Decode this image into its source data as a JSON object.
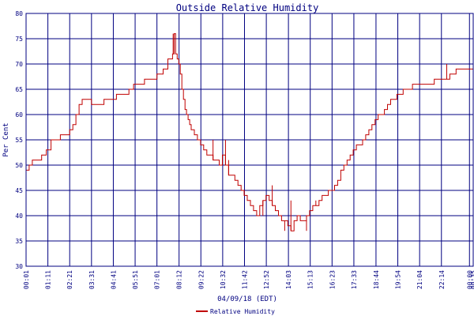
{
  "chart_data": {
    "type": "line",
    "title": "Outside Relative Humidity",
    "xlabel": "04/09/18 (EDT)",
    "ylabel": "Per Cent",
    "ylim": [
      30,
      80
    ],
    "yticks": [
      30,
      35,
      40,
      45,
      50,
      55,
      60,
      65,
      70,
      75,
      80
    ],
    "xlim": [
      0,
      1435
    ],
    "x_unit": "minutes since 00:01",
    "xtick_labels": [
      "00:01",
      "01:11",
      "02:21",
      "03:31",
      "04:41",
      "05:51",
      "07:01",
      "08:12",
      "09:22",
      "10:32",
      "11:42",
      "12:52",
      "14:03",
      "15:13",
      "16:23",
      "17:33",
      "18:44",
      "19:54",
      "21:04",
      "22:14",
      "00:00",
      "00:35"
    ],
    "xtick_minutes": [
      0,
      70,
      140,
      210,
      280,
      350,
      420,
      491,
      561,
      631,
      701,
      771,
      842,
      912,
      982,
      1052,
      1123,
      1193,
      1263,
      1333,
      1423,
      1435
    ],
    "grid": true,
    "legend_position": "bottom-center",
    "series": [
      {
        "name": "Relative Humidity",
        "color": "#c00000",
        "x": [
          0,
          10,
          20,
          35,
          50,
          65,
          80,
          95,
          110,
          125,
          140,
          150,
          160,
          170,
          180,
          190,
          200,
          210,
          230,
          250,
          270,
          290,
          310,
          330,
          345,
          360,
          380,
          400,
          420,
          440,
          455,
          465,
          470,
          475,
          480,
          485,
          490,
          495,
          500,
          505,
          510,
          515,
          520,
          525,
          530,
          540,
          550,
          560,
          570,
          580,
          590,
          600,
          610,
          620,
          630,
          640,
          650,
          660,
          670,
          680,
          690,
          700,
          710,
          720,
          730,
          740,
          750,
          760,
          770,
          780,
          790,
          800,
          810,
          820,
          830,
          840,
          850,
          860,
          870,
          880,
          890,
          900,
          910,
          920,
          930,
          940,
          950,
          960,
          970,
          980,
          990,
          1000,
          1010,
          1020,
          1030,
          1040,
          1050,
          1060,
          1070,
          1080,
          1090,
          1100,
          1110,
          1120,
          1130,
          1140,
          1150,
          1160,
          1170,
          1180,
          1190,
          1200,
          1210,
          1220,
          1230,
          1240,
          1250,
          1260,
          1270,
          1280,
          1290,
          1300,
          1310,
          1320,
          1330,
          1340,
          1350,
          1360,
          1370,
          1380,
          1390,
          1400,
          1410,
          1420,
          1430,
          1435
        ],
        "y": [
          49,
          50,
          51,
          51,
          52,
          53,
          55,
          55,
          56,
          56,
          57,
          58,
          60,
          62,
          63,
          63,
          63,
          62,
          62,
          63,
          63,
          64,
          64,
          65,
          66,
          66,
          67,
          67,
          68,
          69,
          71,
          71,
          72,
          76,
          72,
          71,
          70,
          68,
          65,
          63,
          61,
          60,
          59,
          58,
          57,
          56,
          55,
          54,
          53,
          52,
          52,
          51,
          51,
          50,
          52,
          50,
          48,
          48,
          47,
          46,
          45,
          44,
          43,
          42,
          41,
          40,
          42,
          43,
          44,
          43,
          42,
          41,
          40,
          39,
          39,
          38,
          37,
          39,
          40,
          39,
          39,
          40,
          41,
          42,
          42,
          43,
          44,
          44,
          45,
          45,
          46,
          47,
          49,
          50,
          51,
          52,
          53,
          54,
          54,
          55,
          56,
          57,
          58,
          59,
          60,
          60,
          61,
          62,
          63,
          63,
          64,
          64,
          65,
          65,
          65,
          66,
          66,
          66,
          66,
          66,
          66,
          66,
          67,
          67,
          67,
          67,
          67,
          68,
          68,
          69,
          69,
          69,
          69,
          69,
          69,
          69
        ],
        "spikes": [
          {
            "x": 472,
            "y": 76
          },
          {
            "x": 600,
            "y": 55
          },
          {
            "x": 640,
            "y": 55
          },
          {
            "x": 650,
            "y": 51
          },
          {
            "x": 700,
            "y": 45
          },
          {
            "x": 760,
            "y": 40
          },
          {
            "x": 790,
            "y": 46
          },
          {
            "x": 830,
            "y": 37
          },
          {
            "x": 850,
            "y": 43
          },
          {
            "x": 900,
            "y": 37
          },
          {
            "x": 930,
            "y": 43
          },
          {
            "x": 1350,
            "y": 70
          }
        ]
      }
    ]
  }
}
